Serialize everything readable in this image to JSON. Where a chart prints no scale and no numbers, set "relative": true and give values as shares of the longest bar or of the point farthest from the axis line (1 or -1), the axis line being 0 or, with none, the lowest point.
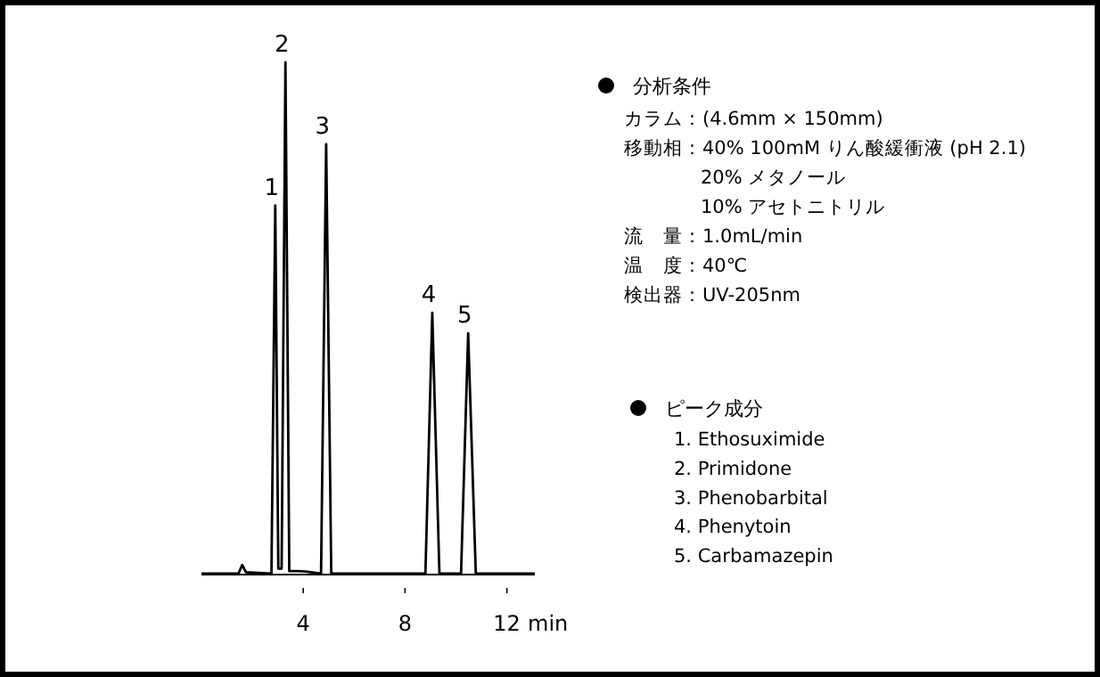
{
  "chart_data": [
    {
      "type": "line",
      "relative": true,
      "color": "#000000",
      "xlabel": "min",
      "xlim": [
        0,
        13.1
      ],
      "xticks": [
        4,
        8,
        12
      ],
      "x": [
        0,
        1.45,
        1.6,
        1.75,
        2.75,
        2.9,
        3.02,
        3.15,
        3.3,
        3.45,
        3.8,
        4.1,
        4.7,
        4.9,
        5.1,
        8.8,
        9.07,
        9.35,
        10.2,
        10.48,
        10.78,
        13.1
      ],
      "values": [
        0,
        0,
        0.017,
        0.003,
        0,
        0.72,
        0.01,
        0.01,
        1.0,
        0.005,
        0.005,
        0.004,
        0,
        0.84,
        0,
        0,
        0.51,
        0,
        0,
        0.47,
        0,
        0
      ],
      "annotations": [
        {
          "text": "1",
          "x": 2.9,
          "y": 0.72
        },
        {
          "text": "2",
          "x": 3.3,
          "y": 1.0
        },
        {
          "text": "3",
          "x": 4.9,
          "y": 0.84
        },
        {
          "text": "4",
          "x": 9.07,
          "y": 0.51
        },
        {
          "text": "5",
          "x": 10.48,
          "y": 0.47
        }
      ]
    },
    {
      "type": "other",
      "title": "分析条件",
      "annotations": [
        "カラム：(4.6mm × 150mm)",
        "移動相：40% 100mM りん酸緩衝液 (pH 2.1)",
        "20% メタノール",
        "10% アセトニトリル",
        "流　量：1.0mL/min",
        "温　度：40℃",
        "検出器：UV-205nm"
      ]
    },
    {
      "type": "other",
      "title": "ピーク成分",
      "annotations": [
        "1. Ethosuximide",
        "2. Primidone",
        "3. Phenobarbital",
        "4. Phenytoin",
        "5. Carbamazepin"
      ]
    }
  ]
}
